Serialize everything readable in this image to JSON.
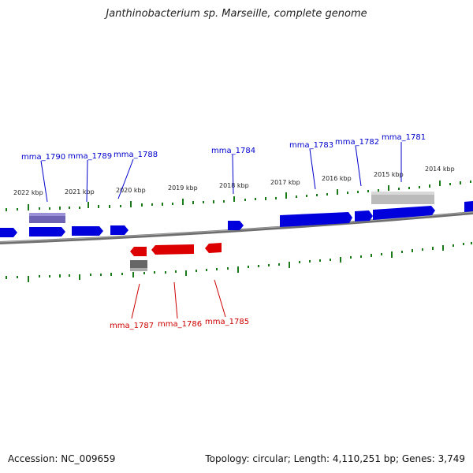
{
  "title": "Janthinobacterium sp. Marseille, complete genome",
  "accession": "Accession: NC_009659",
  "summary": "Topology: circular; Length: 4,110,251 bp; Genes: 3,749",
  "ticks": [
    "2022 kbp",
    "2021 kbp",
    "2020 kbp",
    "2019 kbp",
    "2018 kbp",
    "2017 kbp",
    "2016 kbp",
    "2015 kbp",
    "2014 kbp"
  ],
  "genes_forward": [
    "mma_1790",
    "mma_1789",
    "mma_1788",
    "mma_1784",
    "mma_1783",
    "mma_1782",
    "mma_1781"
  ],
  "genes_reverse": [
    "mma_1787",
    "mma_1786",
    "mma_1785"
  ],
  "colors": {
    "forward": "#0000dd",
    "reverse": "#dd0000",
    "tick": "#1a7a1a",
    "backbone": "#777777"
  }
}
